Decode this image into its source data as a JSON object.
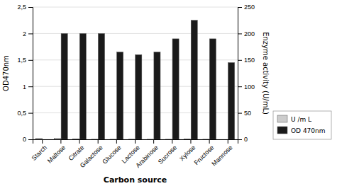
{
  "chart_data": {
    "type": "bar",
    "categories": [
      "Starch",
      "Maltose",
      "Citrate",
      "Galactose",
      "Glucose",
      "Lactose",
      "Arabinose",
      "Sucrose",
      "Xylose",
      "Fructose",
      "Mannose"
    ],
    "series": [
      {
        "name": "U /m L",
        "color": "#cccccc",
        "axis": "y2",
        "values": [
          2.3,
          2.0,
          1.07,
          0.18,
          0.15,
          0.28,
          0.15,
          0.17,
          0.35,
          0.15,
          0.0
        ]
      },
      {
        "name": "OD 470nm",
        "color": "#1a1a1a",
        "values": [
          0.0,
          2.0,
          2.0,
          2.0,
          1.65,
          1.6,
          1.65,
          1.9,
          2.25,
          1.9,
          1.45
        ]
      }
    ],
    "xlabel": "Carbon source",
    "ylabel": "OD470nm",
    "y2label": "Enzyme activity (U/mL)",
    "ylim": [
      0,
      2.5
    ],
    "yticks": [
      0,
      {
        "value": 0.5,
        "label": "0,5"
      },
      1,
      {
        "value": 1.5,
        "label": "1,5"
      },
      2,
      {
        "value": 2.5,
        "label": "2,5"
      }
    ],
    "y2lim": [
      0,
      250
    ],
    "y2ticks": [
      0,
      50,
      100,
      150,
      200,
      250
    ],
    "grid": true,
    "legend": "right"
  }
}
